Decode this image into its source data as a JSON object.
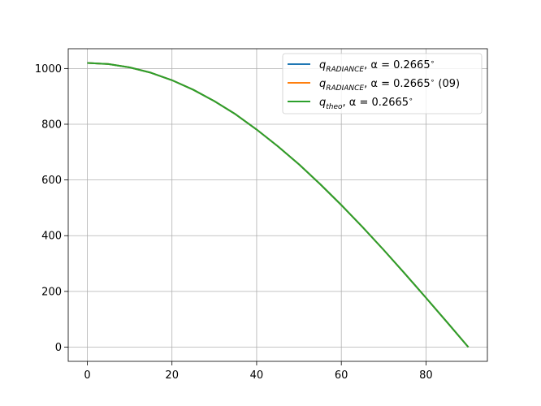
{
  "chart_data": {
    "type": "line",
    "title": "",
    "xlabel": "",
    "ylabel": "",
    "xlim": [
      -4.5,
      94.5
    ],
    "ylim": [
      -51,
      1071
    ],
    "grid": true,
    "legend_position": "top-right",
    "x_ticks": [
      0,
      20,
      40,
      60,
      80
    ],
    "y_ticks": [
      0,
      200,
      400,
      600,
      800,
      1000
    ],
    "x_tick_labels": [
      "0",
      "20",
      "40",
      "60",
      "80"
    ],
    "y_tick_labels": [
      "0",
      "200",
      "400",
      "600",
      "800",
      "1000"
    ],
    "x": [
      0,
      5,
      10,
      15,
      20,
      25,
      30,
      35,
      40,
      45,
      50,
      55,
      60,
      65,
      70,
      75,
      80,
      85,
      90
    ],
    "series": [
      {
        "name": "q_RADIANCE, α = 0.2665°",
        "name_main": "q",
        "name_sub": "RADIANCE",
        "name_rest": ", α = 0.2665",
        "name_suffix": "",
        "color": "#1f77b4",
        "values": [
          1020,
          1016,
          1004,
          985,
          958,
          924,
          883,
          836,
          781,
          721,
          656,
          585,
          510,
          431,
          349,
          264,
          177,
          89,
          0
        ]
      },
      {
        "name": "q_RADIANCE, α = 0.2665° (09)",
        "name_main": "q",
        "name_sub": "RADIANCE",
        "name_rest": ", α = 0.2665",
        "name_suffix": "(09)",
        "color": "#ff7f0e",
        "values": [
          1020,
          1016,
          1004,
          985,
          958,
          924,
          883,
          836,
          781,
          721,
          656,
          585,
          510,
          431,
          349,
          264,
          177,
          89,
          0
        ]
      },
      {
        "name": "q_theo, α = 0.2665°",
        "name_main": "q",
        "name_sub": "theo",
        "name_rest": ", α = 0.2665",
        "name_suffix": "",
        "color": "#2ca02c",
        "values": [
          1020,
          1016,
          1004,
          985,
          958,
          924,
          883,
          836,
          781,
          721,
          656,
          585,
          510,
          431,
          349,
          264,
          177,
          89,
          0
        ]
      }
    ]
  }
}
